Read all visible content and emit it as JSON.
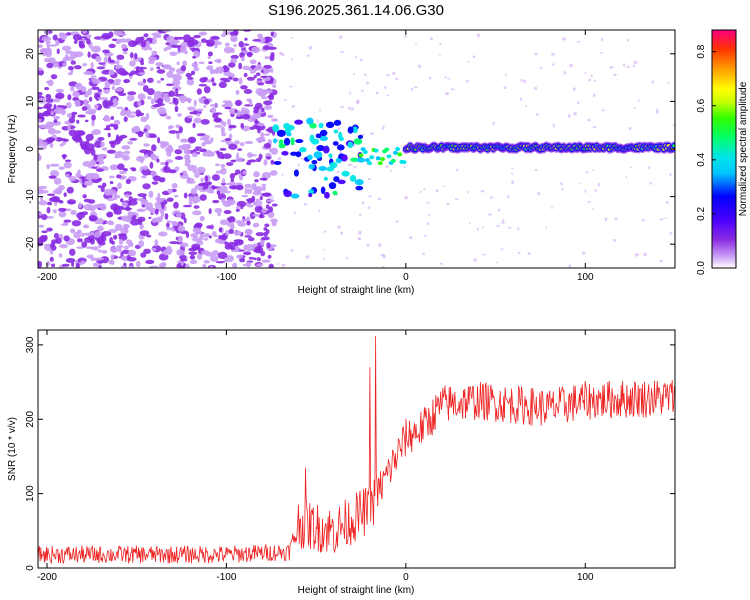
{
  "title": "S196.2025.361.14.06.G30",
  "chart_data": [
    {
      "type": "heatmap",
      "name": "spectrogram",
      "xlabel": "Height of straight line (km)",
      "ylabel": "Frequency (Hz)",
      "xlim": [
        -205,
        150
      ],
      "ylim": [
        -25,
        25
      ],
      "xticks": [
        -200,
        -100,
        0,
        100
      ],
      "yticks": [
        -20,
        -10,
        0,
        10,
        20
      ],
      "colorbar": {
        "label": "Normalized spectral amplitude",
        "range": [
          0.0,
          0.88
        ],
        "ticks": [
          0.0,
          0.2,
          0.4,
          0.6,
          0.8
        ],
        "colors": [
          "#ffffff",
          "#c99cf5",
          "#8a2be2",
          "#4b00ff",
          "#0000ff",
          "#00c8ff",
          "#00e5e5",
          "#00ff66",
          "#33ff00",
          "#ccff00",
          "#ffff00",
          "#ffa500",
          "#ff3300",
          "#ff0080"
        ]
      },
      "regions": [
        {
          "name": "noise",
          "x_range": [
            -205,
            -73
          ],
          "freq_range": [
            -25,
            25
          ],
          "amplitude_range": [
            0.05,
            0.15
          ]
        },
        {
          "name": "onset-scatter",
          "x_range": [
            -73,
            -25
          ],
          "freq_range": [
            -10,
            6
          ],
          "amplitude_range": [
            0.2,
            0.45
          ]
        },
        {
          "name": "stable-tone",
          "x_range": [
            0,
            150
          ],
          "frequency": 0.3,
          "amplitude_range": [
            0.45,
            0.7
          ]
        }
      ]
    },
    {
      "type": "line",
      "name": "snr",
      "xlabel": "Height of straight line (km)",
      "ylabel": "SNR (10 * v/v)",
      "xlim": [
        -205,
        150
      ],
      "ylim": [
        0,
        320
      ],
      "xticks": [
        -200,
        -100,
        0,
        100
      ],
      "yticks": [
        0,
        100,
        200,
        300
      ],
      "color": "#ee2222",
      "trend": {
        "x": [
          -205,
          -100,
          -65,
          -60,
          -40,
          -20,
          0,
          10,
          20,
          40,
          60,
          80,
          100,
          150
        ],
        "y": [
          18,
          18,
          22,
          60,
          50,
          80,
          175,
          190,
          220,
          225,
          220,
          215,
          225,
          230
        ]
      },
      "noise_amplitude": 12,
      "peaks": [
        {
          "x": -17,
          "y": 312
        },
        {
          "x": -20,
          "y": 270
        },
        {
          "x": -56,
          "y": 135
        }
      ]
    }
  ]
}
